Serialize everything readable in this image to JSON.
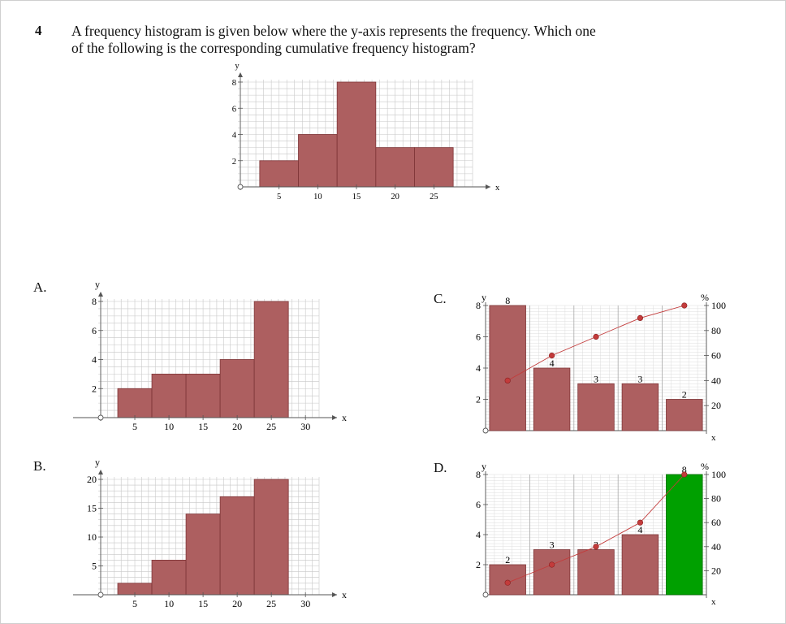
{
  "question": {
    "number": "4",
    "line1": "A frequency histogram is given below where the y-axis represents the frequency. Which one",
    "line2": "of the following is the corresponding cumulative frequency histogram?"
  },
  "options": {
    "a": "A.",
    "b": "B.",
    "c": "C.",
    "d": "D."
  },
  "colors": {
    "bar": "#ad5f60",
    "bar_edge": "#7d3436",
    "highlight": "#00a000",
    "line": "#c33b3b",
    "grid": "#c8c8c8"
  },
  "chart_data": [
    {
      "id": "main",
      "type": "bar",
      "xlabel": "x",
      "ylabel": "y",
      "xlim": [
        0,
        30
      ],
      "ylim": [
        0,
        8
      ],
      "xticks": [
        5,
        10,
        15,
        20,
        25
      ],
      "yticks": [
        2,
        4,
        6,
        8
      ],
      "bars": [
        {
          "x0": 2.5,
          "x1": 7.5,
          "value": 2
        },
        {
          "x0": 7.5,
          "x1": 12.5,
          "value": 4
        },
        {
          "x0": 12.5,
          "x1": 17.5,
          "value": 8
        },
        {
          "x0": 17.5,
          "x1": 22.5,
          "value": 3
        },
        {
          "x0": 22.5,
          "x1": 27.5,
          "value": 3
        }
      ]
    },
    {
      "id": "A",
      "type": "bar",
      "xlabel": "x",
      "ylabel": "y",
      "xlim": [
        0,
        32
      ],
      "ylim": [
        0,
        8
      ],
      "xticks": [
        5,
        10,
        15,
        20,
        25,
        30
      ],
      "yticks": [
        2,
        4,
        6,
        8
      ],
      "bars": [
        {
          "x0": 2.5,
          "x1": 7.5,
          "value": 2
        },
        {
          "x0": 7.5,
          "x1": 12.5,
          "value": 3
        },
        {
          "x0": 12.5,
          "x1": 17.5,
          "value": 3
        },
        {
          "x0": 17.5,
          "x1": 22.5,
          "value": 4
        },
        {
          "x0": 22.5,
          "x1": 27.5,
          "value": 8
        }
      ]
    },
    {
      "id": "B",
      "type": "bar",
      "xlabel": "x",
      "ylabel": "y",
      "xlim": [
        0,
        32
      ],
      "ylim": [
        0,
        20
      ],
      "xticks": [
        5,
        10,
        15,
        20,
        25,
        30
      ],
      "yticks": [
        5,
        10,
        15,
        20
      ],
      "bars": [
        {
          "x0": 2.5,
          "x1": 7.5,
          "value": 2
        },
        {
          "x0": 7.5,
          "x1": 12.5,
          "value": 6
        },
        {
          "x0": 12.5,
          "x1": 17.5,
          "value": 14
        },
        {
          "x0": 17.5,
          "x1": 22.5,
          "value": 17
        },
        {
          "x0": 22.5,
          "x1": 27.5,
          "value": 20
        }
      ]
    },
    {
      "id": "C",
      "type": "bar",
      "xlabel": "x",
      "ylabel": "y",
      "y2label": "%",
      "ylim": [
        0,
        8
      ],
      "y2lim": [
        0,
        100
      ],
      "yticks": [
        2,
        4,
        6,
        8
      ],
      "y2ticks": [
        20,
        40,
        60,
        80,
        100
      ],
      "values": [
        8,
        4,
        3,
        3,
        2
      ],
      "data_labels": [
        "8",
        "4",
        "3",
        "3",
        "2"
      ],
      "cumulative_percent": [
        40,
        60,
        75,
        90,
        100
      ]
    },
    {
      "id": "D",
      "type": "bar",
      "xlabel": "x",
      "ylabel": "y",
      "y2label": "%",
      "ylim": [
        0,
        8
      ],
      "y2lim": [
        0,
        100
      ],
      "yticks": [
        2,
        4,
        6,
        8
      ],
      "y2ticks": [
        20,
        40,
        60,
        80,
        100
      ],
      "values": [
        2,
        3,
        3,
        4,
        8
      ],
      "data_labels": [
        "2",
        "3",
        "3",
        "4",
        "8"
      ],
      "highlight_index": 4,
      "cumulative_percent": [
        10,
        25,
        40,
        60,
        100
      ]
    }
  ]
}
